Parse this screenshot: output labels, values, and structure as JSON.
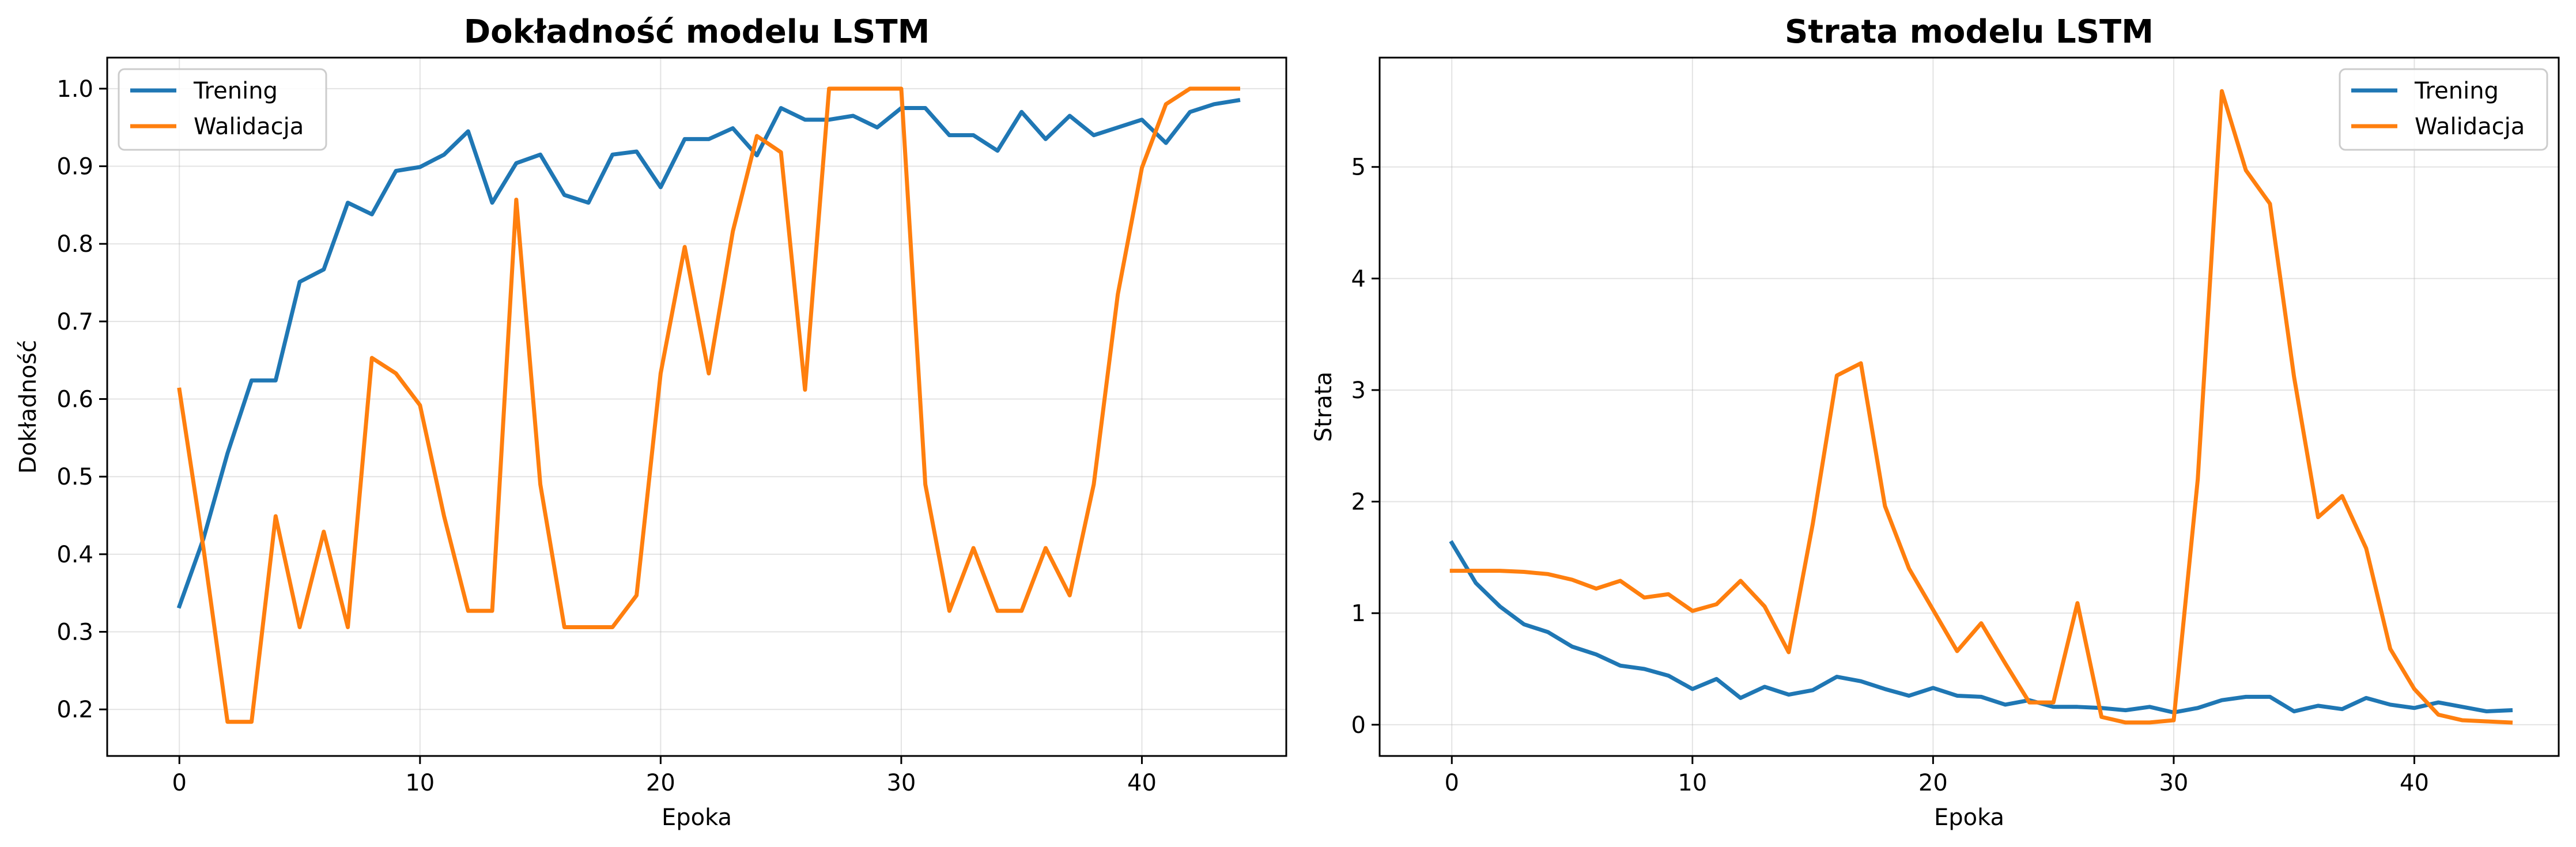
{
  "chart_data": [
    {
      "type": "line",
      "title": "Dokładność modelu LSTM",
      "xlabel": "Epoka",
      "ylabel": "Dokładność",
      "xlim": [
        -3,
        46
      ],
      "ylim": [
        0.14,
        1.04
      ],
      "xticks": [
        0,
        10,
        20,
        30,
        40
      ],
      "yticks": [
        0.2,
        0.3,
        0.4,
        0.5,
        0.6,
        0.7,
        0.8,
        0.9,
        1.0
      ],
      "ytick_labels": [
        "0.2",
        "0.3",
        "0.4",
        "0.5",
        "0.6",
        "0.7",
        "0.8",
        "0.9",
        "1.0"
      ],
      "grid": true,
      "legend_position": "upper-left",
      "x": [
        0,
        1,
        2,
        3,
        4,
        5,
        6,
        7,
        8,
        9,
        10,
        11,
        12,
        13,
        14,
        15,
        16,
        17,
        18,
        19,
        20,
        21,
        22,
        23,
        24,
        25,
        26,
        27,
        28,
        29,
        30,
        31,
        32,
        33,
        34,
        35,
        36,
        37,
        38,
        39,
        40,
        41,
        42,
        43,
        44
      ],
      "series": [
        {
          "name": "Trening",
          "color": "#1f77b4",
          "values": [
            0.333,
            0.42,
            0.53,
            0.624,
            0.624,
            0.751,
            0.767,
            0.853,
            0.838,
            0.894,
            0.899,
            0.915,
            0.945,
            0.853,
            0.904,
            0.915,
            0.863,
            0.853,
            0.915,
            0.919,
            0.873,
            0.935,
            0.935,
            0.949,
            0.914,
            0.975,
            0.96,
            0.96,
            0.965,
            0.95,
            0.975,
            0.975,
            0.94,
            0.94,
            0.92,
            0.97,
            0.935,
            0.965,
            0.94,
            0.95,
            0.96,
            0.93,
            0.97,
            0.98,
            0.985
          ]
        },
        {
          "name": "Walidacja",
          "color": "#ff7f0e",
          "values": [
            0.612,
            0.408,
            0.184,
            0.184,
            0.449,
            0.306,
            0.429,
            0.306,
            0.653,
            0.633,
            0.592,
            0.449,
            0.327,
            0.327,
            0.857,
            0.49,
            0.306,
            0.306,
            0.306,
            0.347,
            0.633,
            0.796,
            0.633,
            0.816,
            0.939,
            0.918,
            0.612,
            1.0,
            1.0,
            1.0,
            1.0,
            0.49,
            0.327,
            0.408,
            0.327,
            0.327,
            0.408,
            0.347,
            0.49,
            0.735,
            0.898,
            0.98,
            1.0,
            1.0,
            1.0
          ]
        }
      ]
    },
    {
      "type": "line",
      "title": "Strata modelu LSTM",
      "xlabel": "Epoka",
      "ylabel": "Strata",
      "xlim": [
        -3,
        46
      ],
      "ylim": [
        -0.28,
        5.98
      ],
      "xticks": [
        0,
        10,
        20,
        30,
        40
      ],
      "yticks": [
        0,
        1,
        2,
        3,
        4,
        5
      ],
      "ytick_labels": [
        "0",
        "1",
        "2",
        "3",
        "4",
        "5"
      ],
      "grid": true,
      "legend_position": "upper-right",
      "x": [
        0,
        1,
        2,
        3,
        4,
        5,
        6,
        7,
        8,
        9,
        10,
        11,
        12,
        13,
        14,
        15,
        16,
        17,
        18,
        19,
        20,
        21,
        22,
        23,
        24,
        25,
        26,
        27,
        28,
        29,
        30,
        31,
        32,
        33,
        34,
        35,
        36,
        37,
        38,
        39,
        40,
        41,
        42,
        43,
        44
      ],
      "series": [
        {
          "name": "Trening",
          "color": "#1f77b4",
          "values": [
            1.63,
            1.27,
            1.06,
            0.9,
            0.83,
            0.7,
            0.63,
            0.53,
            0.5,
            0.44,
            0.32,
            0.41,
            0.24,
            0.34,
            0.27,
            0.31,
            0.43,
            0.39,
            0.32,
            0.26,
            0.33,
            0.26,
            0.25,
            0.18,
            0.22,
            0.16,
            0.16,
            0.15,
            0.13,
            0.16,
            0.11,
            0.15,
            0.22,
            0.25,
            0.25,
            0.12,
            0.17,
            0.14,
            0.24,
            0.18,
            0.15,
            0.2,
            0.16,
            0.12,
            0.13
          ]
        },
        {
          "name": "Walidacja",
          "color": "#ff7f0e",
          "values": [
            1.38,
            1.38,
            1.38,
            1.37,
            1.35,
            1.3,
            1.22,
            1.29,
            1.14,
            1.17,
            1.02,
            1.08,
            1.29,
            1.06,
            0.65,
            1.8,
            3.13,
            3.24,
            1.96,
            1.4,
            1.03,
            0.66,
            0.91,
            0.55,
            0.2,
            0.2,
            1.09,
            0.07,
            0.02,
            0.02,
            0.04,
            2.2,
            5.68,
            4.97,
            4.67,
            3.12,
            1.86,
            2.05,
            1.58,
            0.68,
            0.32,
            0.09,
            0.04,
            0.03,
            0.02
          ]
        }
      ]
    }
  ]
}
